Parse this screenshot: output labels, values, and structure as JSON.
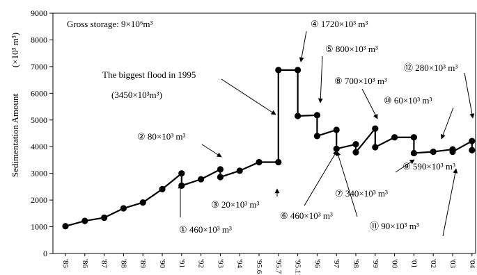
{
  "chart_data": {
    "type": "line",
    "ylabel": "Sedimentation Amount",
    "ylabel_unit": "(×10³ m³)",
    "ylim": [
      0,
      9000
    ],
    "yticks": [
      0,
      1000,
      2000,
      3000,
      4000,
      5000,
      6000,
      7000,
      8000,
      9000
    ],
    "ytick_labels": [
      "0",
      "1000",
      "2000",
      "3000",
      "4000",
      "5000",
      "6000",
      "7000",
      "8000",
      "9000"
    ],
    "x_labels": [
      "'85",
      "'86",
      "'87",
      "'88",
      "'89",
      "'90",
      "'91",
      "'92",
      "'93",
      "'94",
      "'95.6",
      "'95.7",
      "'95.11",
      "'96",
      "'97",
      "'98",
      "'99",
      "'00",
      "'01",
      "'02",
      "'03",
      "'04"
    ],
    "series": [
      {
        "points": [
          {
            "x": "'85",
            "y": 1020
          },
          {
            "x": "'86",
            "y": 1220
          },
          {
            "x": "'87",
            "y": 1340
          },
          {
            "x": "'88",
            "y": 1690
          },
          {
            "x": "'89",
            "y": 1910
          },
          {
            "x": "'90",
            "y": 2410
          },
          {
            "x": "'91",
            "y": 3000
          },
          {
            "x": "'91",
            "y": 2540
          },
          {
            "x": "'92",
            "y": 2780
          },
          {
            "x": "'93",
            "y": 3150
          },
          {
            "x": "'93",
            "y": 2860
          },
          {
            "x": "'94",
            "y": 3100
          },
          {
            "x": "'95.6",
            "y": 3420
          },
          {
            "x": "'95.7",
            "y": 3420
          },
          {
            "x": "'95.7",
            "y": 6870
          },
          {
            "x": "'95.11",
            "y": 6870
          },
          {
            "x": "'95.11",
            "y": 5150
          },
          {
            "x": "'96",
            "y": 5180
          },
          {
            "x": "'96",
            "y": 4400
          },
          {
            "x": "'97",
            "y": 4630
          },
          {
            "x": "'97",
            "y": 3920
          },
          {
            "x": "'98",
            "y": 4090
          },
          {
            "x": "'98",
            "y": 3790
          },
          {
            "x": "'99",
            "y": 4680
          },
          {
            "x": "'99",
            "y": 3980
          },
          {
            "x": "'00",
            "y": 4350
          },
          {
            "x": "'01",
            "y": 4350
          },
          {
            "x": "'01",
            "y": 3760
          },
          {
            "x": "'02",
            "y": 3810
          },
          {
            "x": "'03",
            "y": 3900
          },
          {
            "x": "'03",
            "y": 3810
          },
          {
            "x": "'04",
            "y": 4210
          },
          {
            "x": "'04",
            "y": 3870
          }
        ]
      }
    ],
    "grid": false,
    "annotations": [
      {
        "text": "Gross storage: 9×10⁶m³"
      },
      {
        "text": "The biggest flood in 1995"
      },
      {
        "text": "(3450×10³m³)"
      },
      {
        "text": "① 460×10³ m³"
      },
      {
        "text": "② 80×10³ m³"
      },
      {
        "text": "③ 20×10³ m³"
      },
      {
        "text": "④ 1720×10³ m³"
      },
      {
        "text": "⑤ 800×10³ m³"
      },
      {
        "text": "⑥ 460×10³ m³"
      },
      {
        "text": "⑦ 340×10³ m³"
      },
      {
        "text": "⑧ 700×10³ m³"
      },
      {
        "text": "⑨ 590×10³ m³"
      },
      {
        "text": "⑩ 60×10³ m³"
      },
      {
        "text": "⑪ 90×10³ m³"
      },
      {
        "text": "⑫ 280×10³ m³"
      }
    ]
  }
}
